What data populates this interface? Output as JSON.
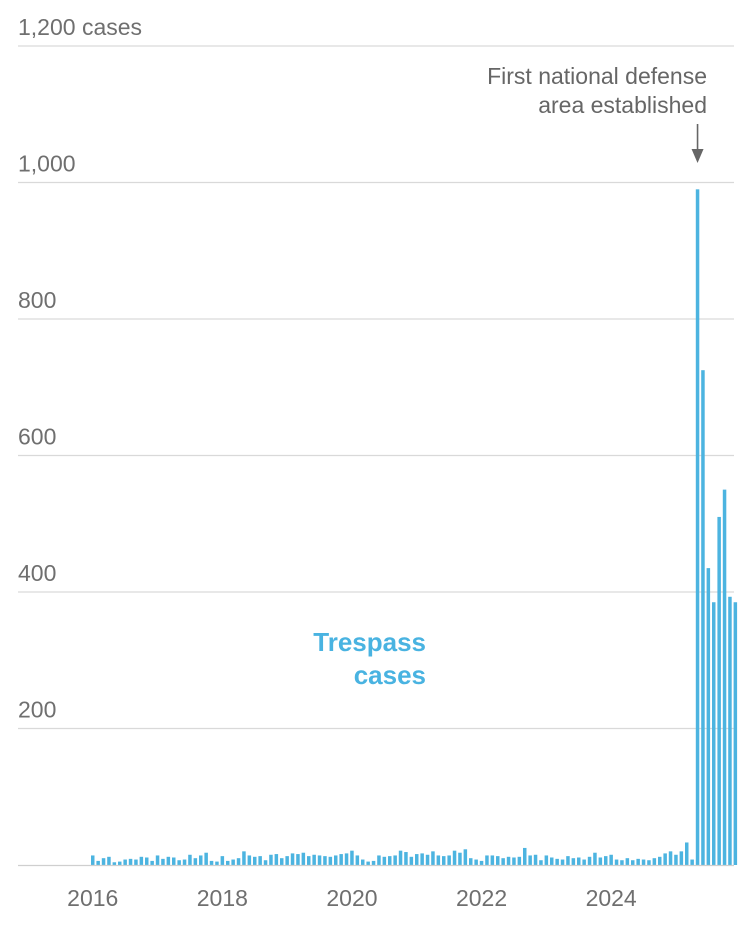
{
  "colors": {
    "bar": "#4cb4e0",
    "series_label": "#49b3e1",
    "grid": "#d9d9d9",
    "text": "#6f6f6f",
    "annotation": "#666666"
  },
  "chart_data": {
    "type": "bar",
    "title": "",
    "xlabel": "",
    "ylabel": "",
    "ylim": [
      0,
      1200
    ],
    "y_ticks": [
      {
        "value": 200,
        "label": "200"
      },
      {
        "value": 400,
        "label": "400"
      },
      {
        "value": 600,
        "label": "600"
      },
      {
        "value": 800,
        "label": "800"
      },
      {
        "value": 1000,
        "label": "1,000"
      },
      {
        "value": 1200,
        "label": "1,200 cases"
      }
    ],
    "x_ticks": [
      {
        "date": "2016-01",
        "label": "2016"
      },
      {
        "date": "2018-01",
        "label": "2018"
      },
      {
        "date": "2020-01",
        "label": "2020"
      },
      {
        "date": "2022-01",
        "label": "2022"
      },
      {
        "date": "2024-01",
        "label": "2024"
      }
    ],
    "grid": true,
    "series": [
      {
        "name": "Trespass cases",
        "label_lines": [
          "Trespass",
          "cases"
        ],
        "start_month": "2016-01",
        "values": [
          14,
          6,
          10,
          12,
          4,
          5,
          8,
          9,
          8,
          12,
          11,
          6,
          14,
          9,
          12,
          11,
          7,
          8,
          15,
          10,
          14,
          18,
          6,
          5,
          13,
          6,
          8,
          10,
          20,
          14,
          12,
          13,
          7,
          15,
          16,
          10,
          13,
          17,
          16,
          18,
          13,
          15,
          14,
          13,
          12,
          14,
          16,
          17,
          21,
          14,
          8,
          5,
          6,
          14,
          12,
          13,
          14,
          21,
          19,
          12,
          16,
          17,
          15,
          20,
          14,
          13,
          14,
          21,
          18,
          23,
          10,
          8,
          6,
          14,
          14,
          13,
          10,
          12,
          11,
          12,
          25,
          14,
          15,
          7,
          14,
          11,
          9,
          8,
          13,
          10,
          11,
          8,
          12,
          18,
          11,
          13,
          15,
          8,
          7,
          10,
          7,
          9,
          8,
          7,
          10,
          12,
          17,
          20,
          15,
          20,
          33,
          8,
          990,
          725,
          435,
          385,
          510,
          550,
          393,
          385
        ]
      }
    ],
    "annotations": [
      {
        "text_lines": [
          "First national defense",
          "area established"
        ],
        "date": "2025-05",
        "arrow": "down"
      }
    ]
  }
}
